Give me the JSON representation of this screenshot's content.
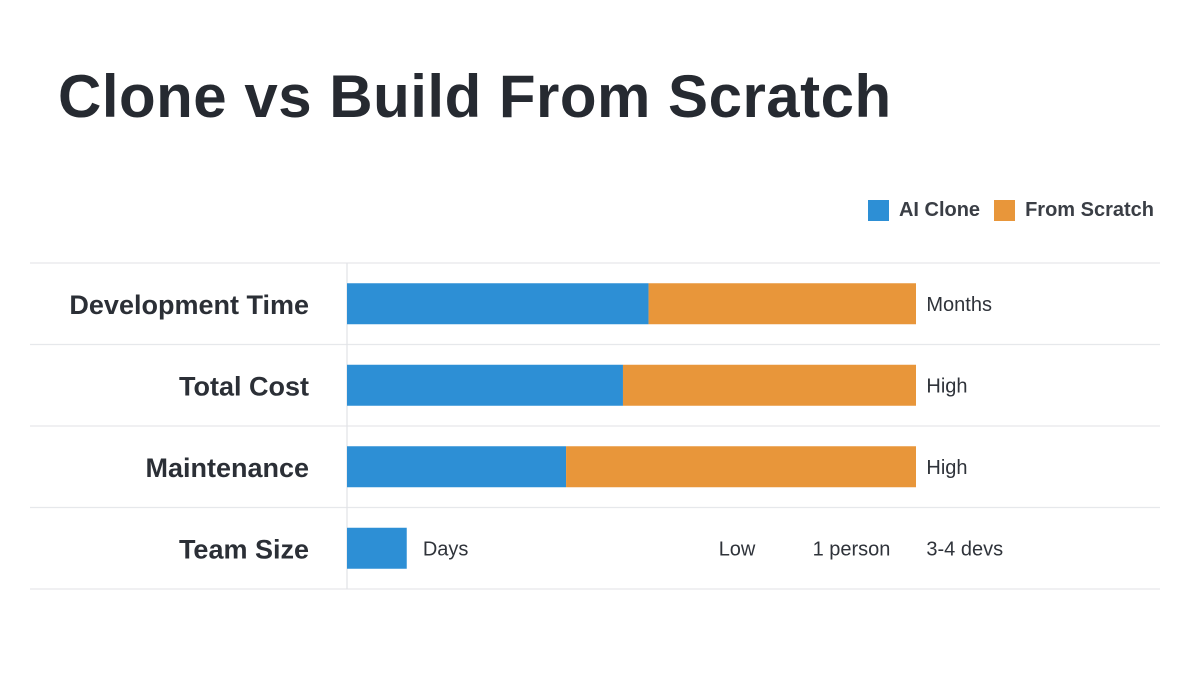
{
  "title": "Clone vs Build From Scratch",
  "legend": [
    {
      "label": "AI Clone",
      "color": "#2d8fd5"
    },
    {
      "label": "From Scratch",
      "color": "#e8963a"
    }
  ],
  "chart_data": {
    "type": "bar",
    "orientation": "horizontal",
    "stacked": true,
    "categories": [
      "Development Time",
      "Total Cost",
      "Maintenance",
      "Team Size"
    ],
    "series": [
      {
        "name": "AI Clone",
        "color": "#2d8fd5",
        "values": [
          53,
          48.5,
          38.5,
          10.5
        ]
      },
      {
        "name": "From Scratch",
        "color": "#e8963a",
        "values": [
          47,
          51.5,
          61.5,
          0
        ]
      }
    ],
    "xlim": [
      0,
      100
    ],
    "grid": true,
    "legend_position": "top-right",
    "annotations": [
      {
        "category": "Development Time",
        "text": "Months",
        "x": 102
      },
      {
        "category": "Total Cost",
        "text": "High",
        "x": 102
      },
      {
        "category": "Maintenance",
        "text": "High",
        "x": 102
      },
      {
        "category": "Team Size",
        "text": "Days",
        "x": 13.5
      },
      {
        "category": "Team Size",
        "text": "Low",
        "x": 65.5
      },
      {
        "category": "Team Size",
        "text": "1 person",
        "x": 82
      },
      {
        "category": "Team Size",
        "text": "3-4 devs",
        "x": 102
      }
    ]
  }
}
